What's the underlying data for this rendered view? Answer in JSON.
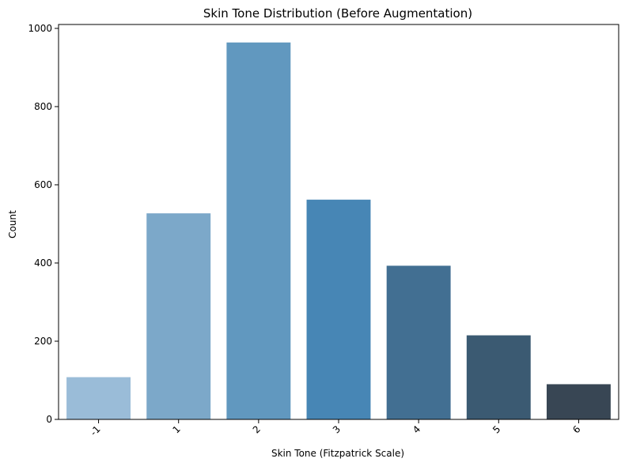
{
  "chart_data": {
    "type": "bar",
    "title": "Skin Tone Distribution (Before Augmentation)",
    "xlabel": "Skin Tone (Fitzpatrick Scale)",
    "ylabel": "Count",
    "categories": [
      "-1",
      "1",
      "2",
      "3",
      "4",
      "5",
      "6"
    ],
    "values": [
      108,
      527,
      964,
      562,
      393,
      215,
      90
    ],
    "colors": [
      "#9abcd8",
      "#7ca8c9",
      "#6198bf",
      "#4786b5",
      "#426f92",
      "#3b5a72",
      "#384654"
    ],
    "ylim": [
      0,
      1010
    ],
    "yticks": [
      "0",
      "200",
      "400",
      "600",
      "800",
      "1000"
    ],
    "grid": false,
    "legend": false
  }
}
